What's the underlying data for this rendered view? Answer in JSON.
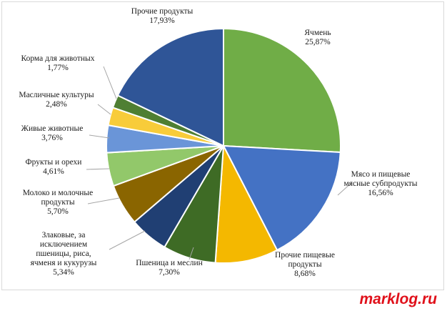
{
  "chart_data": {
    "type": "pie",
    "title": "",
    "slices": [
      {
        "label_lines": [
          "Ячмень"
        ],
        "value_text": "25,87%",
        "value": 25.87,
        "color": "#70ad47"
      },
      {
        "label_lines": [
          "Мясо и пищевые",
          "мясные субпродукты"
        ],
        "value_text": "16,56%",
        "value": 16.56,
        "color": "#4472c4"
      },
      {
        "label_lines": [
          "Прочие пищевые",
          "продукты"
        ],
        "value_text": "8,68%",
        "value": 8.68,
        "color": "#f4b800"
      },
      {
        "label_lines": [
          "Пшеница и меслин"
        ],
        "value_text": "7,30%",
        "value": 7.3,
        "color": "#3e6b25"
      },
      {
        "label_lines": [
          "Злаковые, за",
          "исключением",
          "пшеницы, риса,",
          "ячменя и кукурузы"
        ],
        "value_text": "5,34%",
        "value": 5.34,
        "color": "#203f73"
      },
      {
        "label_lines": [
          "Молоко и молочные",
          "продукты"
        ],
        "value_text": "5,70%",
        "value": 5.7,
        "color": "#8a6500"
      },
      {
        "label_lines": [
          "Фрукты и орехи"
        ],
        "value_text": "4,61%",
        "value": 4.61,
        "color": "#92c86a"
      },
      {
        "label_lines": [
          "Живые животные"
        ],
        "value_text": "3,76%",
        "value": 3.76,
        "color": "#6a95d8"
      },
      {
        "label_lines": [
          "Масличные культуры"
        ],
        "value_text": "2,48%",
        "value": 2.48,
        "color": "#f8cc3a"
      },
      {
        "label_lines": [
          "Корма для животных"
        ],
        "value_text": "1,77%",
        "value": 1.77,
        "color": "#4f7f33"
      },
      {
        "label_lines": [
          "Прочие продукты"
        ],
        "value_text": "17,93%",
        "value": 17.93,
        "color": "#2f5597"
      }
    ]
  },
  "watermark": "marklog.ru"
}
